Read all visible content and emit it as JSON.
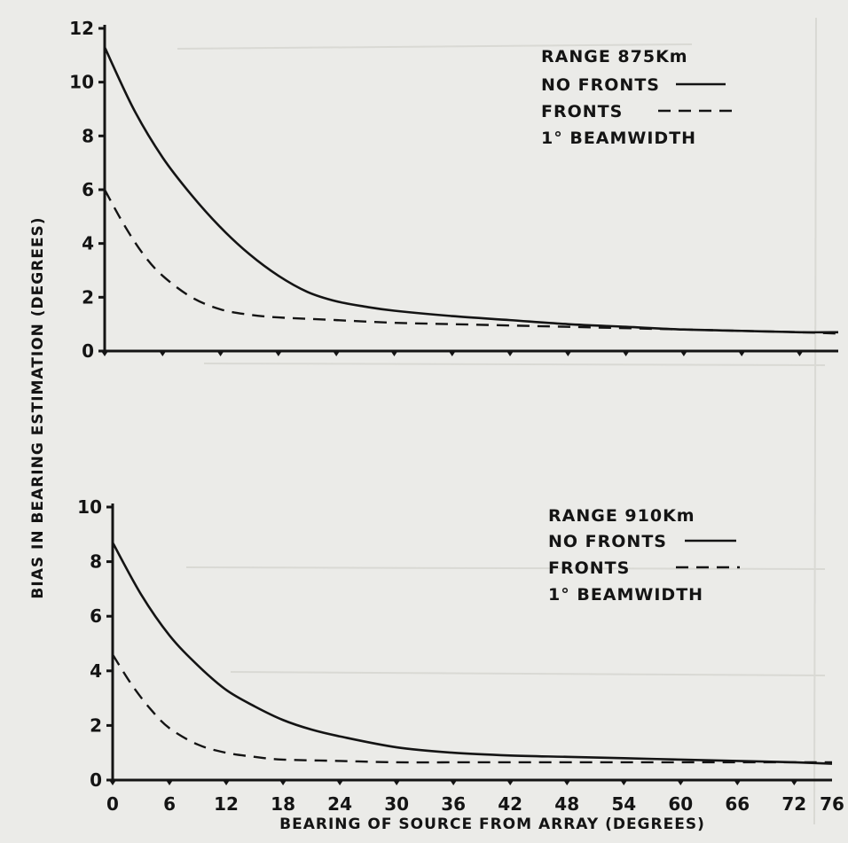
{
  "chart_data": [
    {
      "type": "line",
      "ylabel": "BIAS IN BEARING ESTIMATION (DEGREES)",
      "xlabel": "",
      "ylim": [
        0,
        12
      ],
      "xlim": [
        0,
        76
      ],
      "yticks": [
        "0",
        "2",
        "4",
        "6",
        "8",
        "10",
        "12"
      ],
      "legend_position": "top-right",
      "legend": {
        "range": "RANGE 875Km",
        "no_fronts": "NO FRONTS",
        "fronts": "FRONTS",
        "beamwidth": "1° BEAMWIDTH"
      },
      "series": [
        {
          "name": "NO FRONTS",
          "style": "solid",
          "x": [
            0,
            3,
            6,
            9,
            12,
            15,
            18,
            21,
            24,
            27,
            30,
            36,
            42,
            48,
            54,
            60,
            66,
            72,
            76
          ],
          "values": [
            11.3,
            9.0,
            7.2,
            5.8,
            4.6,
            3.6,
            2.8,
            2.2,
            1.85,
            1.65,
            1.5,
            1.3,
            1.15,
            1.0,
            0.9,
            0.8,
            0.75,
            0.7,
            0.7
          ]
        },
        {
          "name": "FRONTS",
          "style": "dashed",
          "x": [
            0,
            2,
            4,
            6,
            9,
            12,
            15,
            18,
            24,
            30,
            36,
            42,
            48,
            54,
            60,
            66,
            72,
            76
          ],
          "values": [
            6.0,
            4.7,
            3.6,
            2.8,
            2.0,
            1.55,
            1.35,
            1.25,
            1.15,
            1.05,
            1.0,
            0.95,
            0.9,
            0.85,
            0.8,
            0.75,
            0.7,
            0.65
          ]
        }
      ]
    },
    {
      "type": "line",
      "ylabel": "",
      "xlabel": "BEARING OF SOURCE FROM ARRAY (DEGREES)",
      "ylim": [
        0,
        10
      ],
      "xlim": [
        0,
        76
      ],
      "xticks": [
        "0",
        "6",
        "12",
        "18",
        "24",
        "30",
        "36",
        "42",
        "48",
        "54",
        "60",
        "66",
        "72",
        "76"
      ],
      "yticks": [
        "0",
        "2",
        "4",
        "6",
        "8",
        "10"
      ],
      "legend_position": "top-right",
      "legend": {
        "range": "RANGE 910Km",
        "no_fronts": "NO FRONTS",
        "fronts": "FRONTS",
        "beamwidth": "1° BEAMWIDTH"
      },
      "series": [
        {
          "name": "NO FRONTS",
          "style": "solid",
          "x": [
            0,
            3,
            6,
            9,
            12,
            15,
            18,
            21,
            24,
            30,
            36,
            42,
            48,
            54,
            60,
            66,
            72,
            76
          ],
          "values": [
            8.7,
            6.8,
            5.3,
            4.2,
            3.3,
            2.7,
            2.2,
            1.85,
            1.6,
            1.2,
            1.0,
            0.9,
            0.85,
            0.8,
            0.75,
            0.7,
            0.65,
            0.6
          ]
        },
        {
          "name": "FRONTS",
          "style": "dashed",
          "x": [
            0,
            2,
            4,
            6,
            9,
            12,
            15,
            18,
            24,
            30,
            36,
            42,
            48,
            54,
            60,
            66,
            72,
            76
          ],
          "values": [
            4.6,
            3.5,
            2.6,
            1.9,
            1.3,
            1.0,
            0.85,
            0.75,
            0.7,
            0.65,
            0.65,
            0.65,
            0.65,
            0.65,
            0.65,
            0.65,
            0.65,
            0.65
          ]
        }
      ]
    }
  ]
}
